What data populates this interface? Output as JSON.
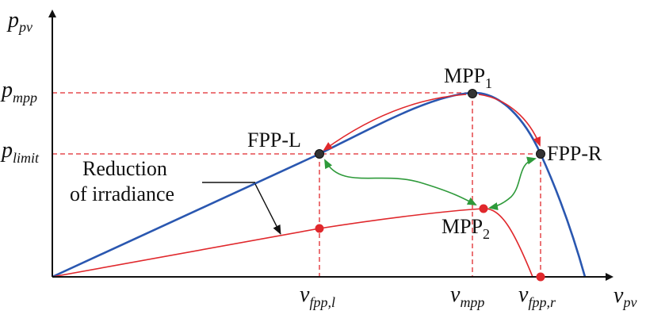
{
  "axes": {
    "y_symbol": "p",
    "y_subscript": "pv",
    "x_symbol": "v",
    "x_subscript": "pv"
  },
  "y_ticks": [
    {
      "symbol": "p",
      "subscript": "mpp"
    },
    {
      "symbol": "p",
      "subscript": "limit"
    }
  ],
  "x_ticks": [
    {
      "symbol": "v",
      "subscript": "fpp,l"
    },
    {
      "symbol": "v",
      "subscript": "mpp"
    },
    {
      "symbol": "v",
      "subscript": "fpp,r"
    }
  ],
  "points": {
    "mpp1": {
      "base": "MPP",
      "sub": "1"
    },
    "mpp2": {
      "base": "MPP",
      "sub": "2"
    },
    "fpp_l": "FPP-L",
    "fpp_r": "FPP-R"
  },
  "annotation": {
    "line1": "Reduction",
    "line2": "of irradiance"
  },
  "colors": {
    "curve_full": "#2a57b0",
    "curve_reduced": "#e0282c",
    "transition_arrows": "#e0282c",
    "power_limit_links": "#2e9a3a",
    "guide_lines": "#e0282c",
    "axis": "#111111"
  }
}
